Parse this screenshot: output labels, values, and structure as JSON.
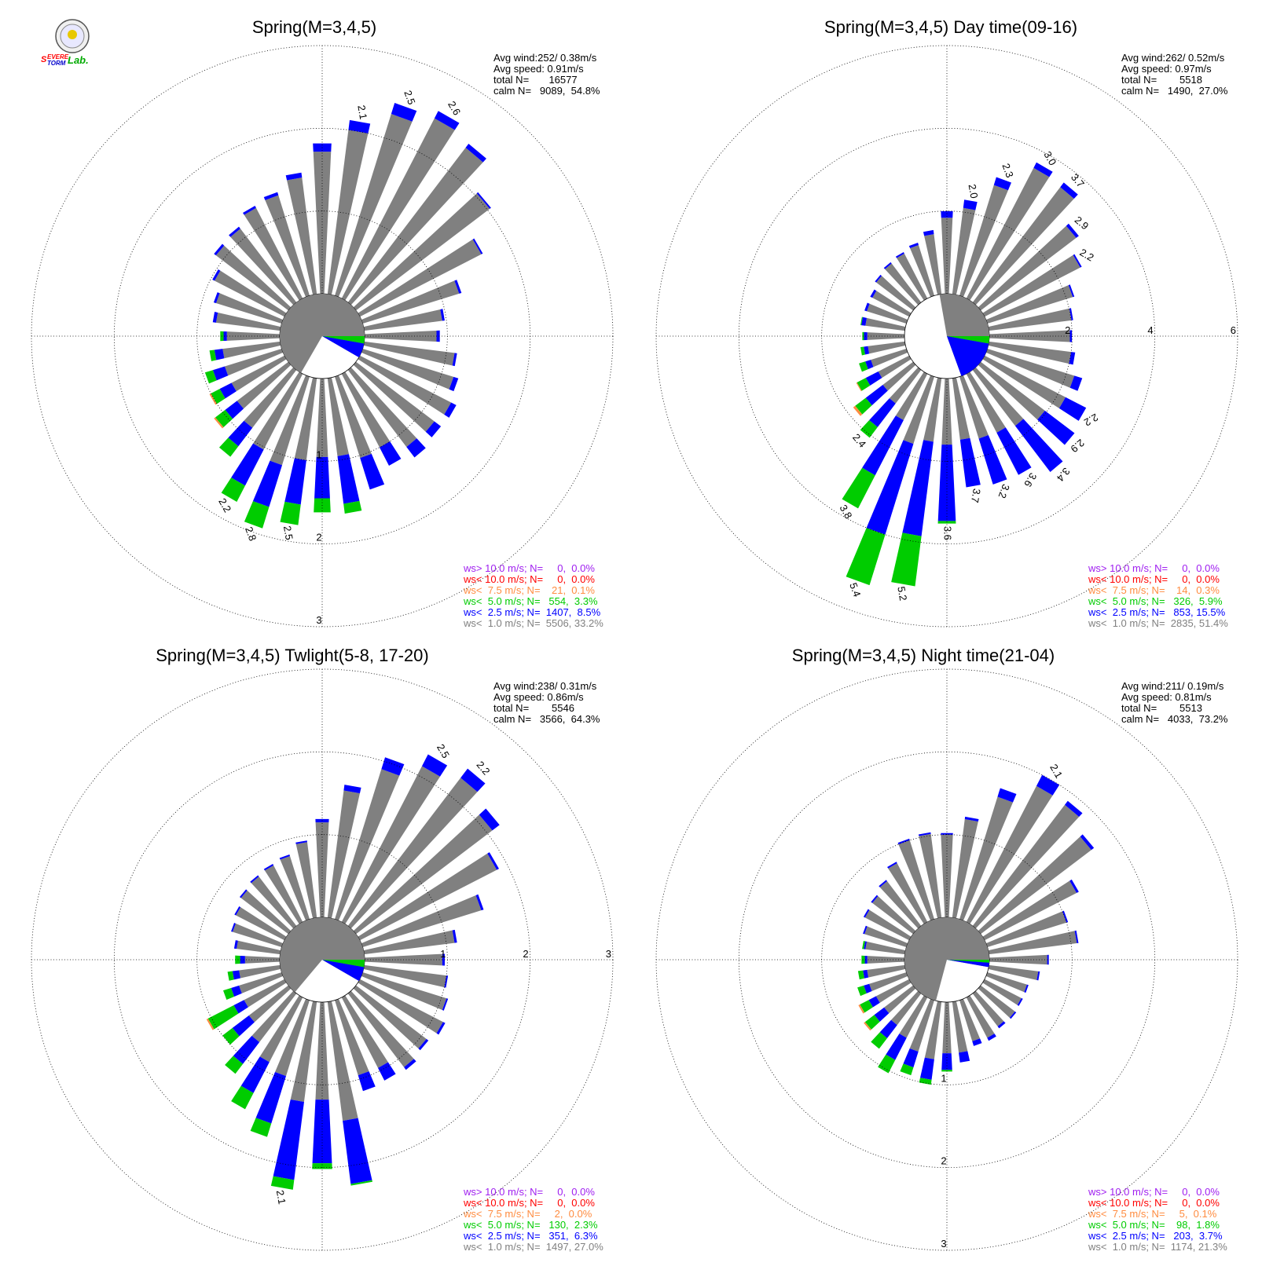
{
  "logo": {
    "text_s": "S",
    "text_evere": "EVERE",
    "text_torm": "TORM",
    "text_lab": "Lab."
  },
  "colors": {
    "calm": "#808080",
    "gt10": "#a020f0",
    "lt10": "#ff0000",
    "lt75": "#ff8c40",
    "lt50": "#00cc00",
    "lt25": "#0000ff",
    "lt10ms": "#808080"
  },
  "charts": [
    {
      "title": "Spring(M=3,4,5)",
      "stats": [
        "Avg wind:252/ 0.38m/s",
        "Avg speed: 0.91m/s",
        "total N=       16577",
        "calm N=   9089,  54.8%"
      ],
      "legend": [
        {
          "label": "ws> 10.0 m/s; N=     0,  0.0%",
          "color": "#a020f0"
        },
        {
          "label": "ws< 10.0 m/s; N=     0,  0.0%",
          "color": "#ff0000"
        },
        {
          "label": "ws<  7.5 m/s; N=    21,  0.1%",
          "color": "#ff8c40"
        },
        {
          "label": "ws<  5.0 m/s; N=   554,  3.3%",
          "color": "#00cc00"
        },
        {
          "label": "ws<  2.5 m/s; N=  1407,  8.5%",
          "color": "#0000ff"
        },
        {
          "label": "ws<  1.0 m/s; N=  5506, 33.2%",
          "color": "#808080"
        }
      ],
      "ring_labels": [
        "1",
        "2",
        "3"
      ]
    },
    {
      "title": "Spring(M=3,4,5) Day time(09-16)",
      "stats": [
        "Avg wind:262/ 0.52m/s",
        "Avg speed: 0.97m/s",
        "total N=        5518",
        "calm N=   1490,  27.0%"
      ],
      "legend": [
        {
          "label": "ws> 10.0 m/s; N=     0,  0.0%",
          "color": "#a020f0"
        },
        {
          "label": "ws< 10.0 m/s; N=     0,  0.0%",
          "color": "#ff0000"
        },
        {
          "label": "ws<  7.5 m/s; N=    14,  0.3%",
          "color": "#ff8c40"
        },
        {
          "label": "ws<  5.0 m/s; N=   326,  5.9%",
          "color": "#00cc00"
        },
        {
          "label": "ws<  2.5 m/s; N=   853, 15.5%",
          "color": "#0000ff"
        },
        {
          "label": "ws<  1.0 m/s; N=  2835, 51.4%",
          "color": "#808080"
        }
      ],
      "ring_labels": [
        "2",
        "4",
        "6"
      ]
    },
    {
      "title": "Spring(M=3,4,5) Twlight(5-8, 17-20)",
      "stats": [
        "Avg wind:238/ 0.31m/s",
        "Avg speed: 0.86m/s",
        "total N=        5546",
        "calm N=   3566,  64.3%"
      ],
      "legend": [
        {
          "label": "ws> 10.0 m/s; N=     0,  0.0%",
          "color": "#a020f0"
        },
        {
          "label": "ws< 10.0 m/s; N=     0,  0.0%",
          "color": "#ff0000"
        },
        {
          "label": "ws<  7.5 m/s; N=     2,  0.0%",
          "color": "#ff8c40"
        },
        {
          "label": "ws<  5.0 m/s; N=   130,  2.3%",
          "color": "#00cc00"
        },
        {
          "label": "ws<  2.5 m/s; N=   351,  6.3%",
          "color": "#0000ff"
        },
        {
          "label": "ws<  1.0 m/s; N=  1497, 27.0%",
          "color": "#808080"
        }
      ],
      "ring_labels": [
        "1",
        "2",
        "3"
      ]
    },
    {
      "title": "Spring(M=3,4,5) Night time(21-04)",
      "stats": [
        "Avg wind:211/ 0.19m/s",
        "Avg speed: 0.81m/s",
        "total N=        5513",
        "calm N=   4033,  73.2%"
      ],
      "legend": [
        {
          "label": "ws> 10.0 m/s; N=     0,  0.0%",
          "color": "#a020f0"
        },
        {
          "label": "ws< 10.0 m/s; N=     0,  0.0%",
          "color": "#ff0000"
        },
        {
          "label": "ws<  7.5 m/s; N=     5,  0.1%",
          "color": "#ff8c40"
        },
        {
          "label": "ws<  5.0 m/s; N=    98,  1.8%",
          "color": "#00cc00"
        },
        {
          "label": "ws<  2.5 m/s; N=   203,  3.7%",
          "color": "#0000ff"
        },
        {
          "label": "ws<  1.0 m/s; N=  1174, 21.3%",
          "color": "#808080"
        }
      ],
      "ring_labels": [
        "1",
        "2",
        "3"
      ]
    }
  ],
  "chart_data": [
    {
      "type": "wind-rose",
      "title": "Spring(M=3,4,5)",
      "r_max": 3,
      "r_ticks": [
        1,
        2,
        3
      ],
      "bins": 36,
      "calm_sector": {
        "from_deg": 210,
        "to_deg": 120,
        "color": "#808080"
      },
      "calm_sector_blue": {
        "from_deg": 120,
        "to_deg": 100
      },
      "calm_sector_green": {
        "from_deg": 100,
        "to_deg": 90
      },
      "bars": [
        [
          0.87,
          0.04,
          0,
          0
        ],
        [
          0.95,
          0.03,
          0,
          0
        ],
        [
          1.22,
          0.03,
          0,
          0
        ],
        [
          1.65,
          0.02,
          0,
          0
        ],
        [
          2.03,
          0.02,
          0,
          0
        ],
        [
          2.35,
          0.06,
          0,
          0
        ],
        [
          2.45,
          0.1,
          0,
          0
        ],
        [
          2.3,
          0.14,
          0,
          0
        ],
        [
          2.0,
          0.12,
          0,
          0
        ],
        [
          1.72,
          0.1,
          0,
          0
        ],
        [
          1.42,
          0.06,
          0,
          0
        ],
        [
          1.27,
          0.04,
          0,
          0
        ],
        [
          1.23,
          0.03,
          0,
          0
        ],
        [
          1.12,
          0.03,
          0,
          0
        ],
        [
          1.1,
          0.03,
          0,
          0
        ],
        [
          0.95,
          0.03,
          0,
          0
        ],
        [
          0.83,
          0.03,
          0,
          0
        ],
        [
          0.78,
          0.04,
          0,
          0
        ],
        [
          0.64,
          0.04,
          0.04,
          0
        ],
        [
          0.7,
          0.1,
          0.06,
          0
        ],
        [
          0.72,
          0.15,
          0.1,
          0
        ],
        [
          0.72,
          0.16,
          0.12,
          0.02
        ],
        [
          0.78,
          0.18,
          0.15,
          0.02
        ],
        [
          0.88,
          0.28,
          0.16,
          0
        ],
        [
          1.03,
          0.49,
          0.22,
          0
        ],
        [
          1.12,
          0.53,
          0.27,
          0
        ],
        [
          1.0,
          0.54,
          0.25,
          0
        ],
        [
          0.95,
          0.5,
          0.17,
          0
        ],
        [
          0.95,
          0.58,
          0.12,
          0
        ],
        [
          1.03,
          0.4,
          0,
          0
        ],
        [
          1.0,
          0.25,
          0,
          0
        ],
        [
          1.17,
          0.16,
          0,
          0
        ],
        [
          1.19,
          0.1,
          0,
          0
        ],
        [
          1.24,
          0.07,
          0,
          0
        ],
        [
          1.15,
          0.06,
          0,
          0
        ],
        [
          1.1,
          0.03,
          0,
          0
        ]
      ],
      "labels": [
        {
          "bin": 6,
          "text": "2.6"
        },
        {
          "bin": 7,
          "text": "2.5"
        },
        {
          "bin": 8,
          "text": "2.1"
        },
        {
          "bin": 24,
          "text": "2.2"
        },
        {
          "bin": 25,
          "text": "2.8"
        },
        {
          "bin": 26,
          "text": "2.5"
        }
      ]
    },
    {
      "type": "wind-rose",
      "title": "Spring(M=3,4,5) Day time(09-16)",
      "r_max": 6,
      "r_ticks": [
        2,
        4,
        6
      ],
      "bins": 36,
      "calm_sector": {
        "from_deg": 350,
        "to_deg": 160,
        "color": "#808080"
      },
      "calm_sector_blue": {
        "from_deg": 160,
        "to_deg": 100
      },
      "calm_sector_green": {
        "from_deg": 100,
        "to_deg": 90
      },
      "bars": [
        [
          1.95,
          0.05,
          0,
          0
        ],
        [
          2.01,
          0.04,
          0,
          0
        ],
        [
          2.16,
          0.04,
          0,
          0
        ],
        [
          2.6,
          0.04,
          0,
          0
        ],
        [
          2.9,
          0.08,
          0,
          0
        ],
        [
          3.5,
          0.14,
          0,
          0
        ],
        [
          3.55,
          0.15,
          0,
          0
        ],
        [
          2.8,
          0.2,
          0,
          0
        ],
        [
          2.1,
          0.2,
          0,
          0
        ],
        [
          1.84,
          0.16,
          0,
          0
        ],
        [
          1.46,
          0.1,
          0,
          0
        ],
        [
          1.28,
          0.06,
          0,
          0
        ],
        [
          1.22,
          0.04,
          0,
          0
        ],
        [
          1.18,
          0.04,
          0,
          0
        ],
        [
          1.12,
          0.04,
          0,
          0
        ],
        [
          1.0,
          0.06,
          0,
          0
        ],
        [
          1.0,
          0.06,
          0,
          0
        ],
        [
          0.96,
          0.1,
          0.02,
          0
        ],
        [
          0.9,
          0.08,
          0.04,
          0
        ],
        [
          0.9,
          0.1,
          0.08,
          0
        ],
        [
          0.9,
          0.14,
          0.16,
          0
        ],
        [
          0.84,
          0.34,
          0.24,
          0.02
        ],
        [
          0.92,
          0.52,
          0.32,
          0.06
        ],
        [
          1.02,
          0.72,
          0.32,
          0
        ],
        [
          1.26,
          1.5,
          0.9,
          0
        ],
        [
          1.7,
          2.3,
          1.28,
          0
        ],
        [
          1.55,
          2.3,
          1.22,
          0
        ],
        [
          1.6,
          1.85,
          0.06,
          0
        ],
        [
          1.5,
          1.16,
          0,
          0
        ],
        [
          1.57,
          1.16,
          0,
          0
        ],
        [
          1.6,
          1.15,
          0,
          0
        ],
        [
          1.7,
          1.4,
          0,
          0
        ],
        [
          1.95,
          0.9,
          0,
          0
        ],
        [
          2.2,
          0.56,
          0,
          0
        ],
        [
          2.2,
          0.2,
          0,
          0
        ],
        [
          2.0,
          0.1,
          0,
          0
        ]
      ],
      "labels": [
        {
          "bin": 5,
          "text": "3.7"
        },
        {
          "bin": 4,
          "text": "2.9"
        },
        {
          "bin": 3,
          "text": "2.2"
        },
        {
          "bin": 6,
          "text": "3.0"
        },
        {
          "bin": 7,
          "text": "2.3"
        },
        {
          "bin": 8,
          "text": "2.0"
        },
        {
          "bin": 23,
          "text": "2.4"
        },
        {
          "bin": 24,
          "text": "3.8"
        },
        {
          "bin": 25,
          "text": "5.4"
        },
        {
          "bin": 26,
          "text": "5.2"
        },
        {
          "bin": 27,
          "text": "3.6"
        },
        {
          "bin": 28,
          "text": "3.7"
        },
        {
          "bin": 29,
          "text": "3.2"
        },
        {
          "bin": 30,
          "text": "3.6"
        },
        {
          "bin": 31,
          "text": "3.4"
        },
        {
          "bin": 32,
          "text": "2.9"
        },
        {
          "bin": 33,
          "text": "2.2"
        }
      ]
    },
    {
      "type": "wind-rose",
      "title": "Spring(M=3,4,5) Twlight(5-8, 17-20)",
      "r_max": 3,
      "r_ticks": [
        1,
        2,
        3
      ],
      "bins": 36,
      "calm_sector": {
        "from_deg": 220,
        "to_deg": 120,
        "color": "#808080"
      },
      "calm_sector_blue": {
        "from_deg": 120,
        "to_deg": 100
      },
      "calm_sector_green": {
        "from_deg": 100,
        "to_deg": 90
      },
      "bars": [
        [
          0.94,
          0.03,
          0,
          0
        ],
        [
          1.1,
          0.03,
          0,
          0
        ],
        [
          1.5,
          0.03,
          0,
          0
        ],
        [
          1.86,
          0.03,
          0,
          0
        ],
        [
          2.07,
          0.11,
          0,
          0
        ],
        [
          2.25,
          0.14,
          0,
          0
        ],
        [
          2.12,
          0.16,
          0,
          0
        ],
        [
          1.9,
          0.15,
          0,
          0
        ],
        [
          1.55,
          0.07,
          0,
          0
        ],
        [
          1.15,
          0.04,
          0,
          0
        ],
        [
          0.92,
          0.02,
          0,
          0
        ],
        [
          0.8,
          0.02,
          0,
          0
        ],
        [
          0.77,
          0.02,
          0,
          0
        ],
        [
          0.75,
          0.02,
          0,
          0
        ],
        [
          0.72,
          0.02,
          0,
          0
        ],
        [
          0.66,
          0.02,
          0,
          0
        ],
        [
          0.62,
          0.02,
          0,
          0
        ],
        [
          0.53,
          0.03,
          0.0,
          0
        ],
        [
          0.42,
          0.06,
          0.06,
          0
        ],
        [
          0.5,
          0.08,
          0.06,
          0
        ],
        [
          0.54,
          0.1,
          0.1,
          0
        ],
        [
          0.55,
          0.14,
          0.35,
          0.02
        ],
        [
          0.6,
          0.25,
          0.15,
          0
        ],
        [
          0.74,
          0.33,
          0.15,
          0
        ],
        [
          0.88,
          0.42,
          0.22,
          0
        ],
        [
          0.96,
          0.6,
          0.17,
          0
        ],
        [
          1.22,
          0.95,
          0.12,
          0
        ],
        [
          1.18,
          0.77,
          0.07,
          0
        ],
        [
          1.45,
          0.77,
          0.02,
          0
        ],
        [
          0.95,
          0.2,
          0,
          0
        ],
        [
          0.96,
          0.17,
          0,
          0
        ],
        [
          1.12,
          0.04,
          0,
          0
        ],
        [
          1.07,
          0.03,
          0,
          0
        ],
        [
          1.13,
          0.03,
          0,
          0
        ],
        [
          1.06,
          0.02,
          0,
          0
        ],
        [
          1.0,
          0.02,
          0,
          0
        ]
      ],
      "labels": [
        {
          "bin": 5,
          "text": "2.2"
        },
        {
          "bin": 6,
          "text": "2.5"
        },
        {
          "bin": 26,
          "text": "2.1"
        }
      ]
    },
    {
      "type": "wind-rose",
      "title": "Spring(M=3,4,5) Night time(21-04)",
      "r_max": 3,
      "r_ticks": [
        1,
        2,
        3
      ],
      "bins": 36,
      "calm_sector": {
        "from_deg": 195,
        "to_deg": 100,
        "color": "#808080"
      },
      "calm_sector_blue": {
        "from_deg": 100,
        "to_deg": 94
      },
      "calm_sector_green": {
        "from_deg": 94,
        "to_deg": 90
      },
      "bars": [
        [
          0.7,
          0.02,
          0,
          0
        ],
        [
          1.07,
          0.02,
          0,
          0
        ],
        [
          1.0,
          0.02,
          0,
          0
        ],
        [
          1.25,
          0.03,
          0,
          0
        ],
        [
          1.68,
          0.04,
          0,
          0
        ],
        [
          1.84,
          0.06,
          0,
          0
        ],
        [
          1.85,
          0.15,
          0,
          0
        ],
        [
          1.55,
          0.11,
          0,
          0
        ],
        [
          1.2,
          0.03,
          0,
          0
        ],
        [
          1.0,
          0.02,
          0,
          0
        ],
        [
          1.02,
          0.02,
          0,
          0
        ],
        [
          1.0,
          0.02,
          0,
          0
        ],
        [
          0.8,
          0.02,
          0,
          0
        ],
        [
          0.68,
          0.02,
          0,
          0
        ],
        [
          0.62,
          0.02,
          0,
          0
        ],
        [
          0.6,
          0.02,
          0,
          0
        ],
        [
          0.53,
          0.02,
          0,
          0
        ],
        [
          0.48,
          0.02,
          0.02,
          0
        ],
        [
          0.45,
          0.03,
          0.04,
          0
        ],
        [
          0.46,
          0.05,
          0.06,
          0
        ],
        [
          0.47,
          0.07,
          0.08,
          0
        ],
        [
          0.45,
          0.1,
          0.12,
          0.02
        ],
        [
          0.44,
          0.15,
          0.14,
          0.02
        ],
        [
          0.48,
          0.2,
          0.16,
          0
        ],
        [
          0.55,
          0.3,
          0.18,
          0
        ],
        [
          0.65,
          0.2,
          0.1,
          0
        ],
        [
          0.7,
          0.25,
          0.06,
          0
        ],
        [
          0.62,
          0.2,
          0.02,
          0
        ],
        [
          0.62,
          0.12,
          0,
          0
        ],
        [
          0.52,
          0.06,
          0,
          0
        ],
        [
          0.55,
          0.04,
          0,
          0
        ],
        [
          0.5,
          0.03,
          0,
          0
        ],
        [
          0.52,
          0.02,
          0,
          0
        ],
        [
          0.5,
          0.02,
          0,
          0
        ],
        [
          0.5,
          0.02,
          0,
          0
        ],
        [
          0.6,
          0.02,
          0,
          0
        ]
      ],
      "labels": [
        {
          "bin": 6,
          "text": "2.1"
        }
      ]
    }
  ]
}
